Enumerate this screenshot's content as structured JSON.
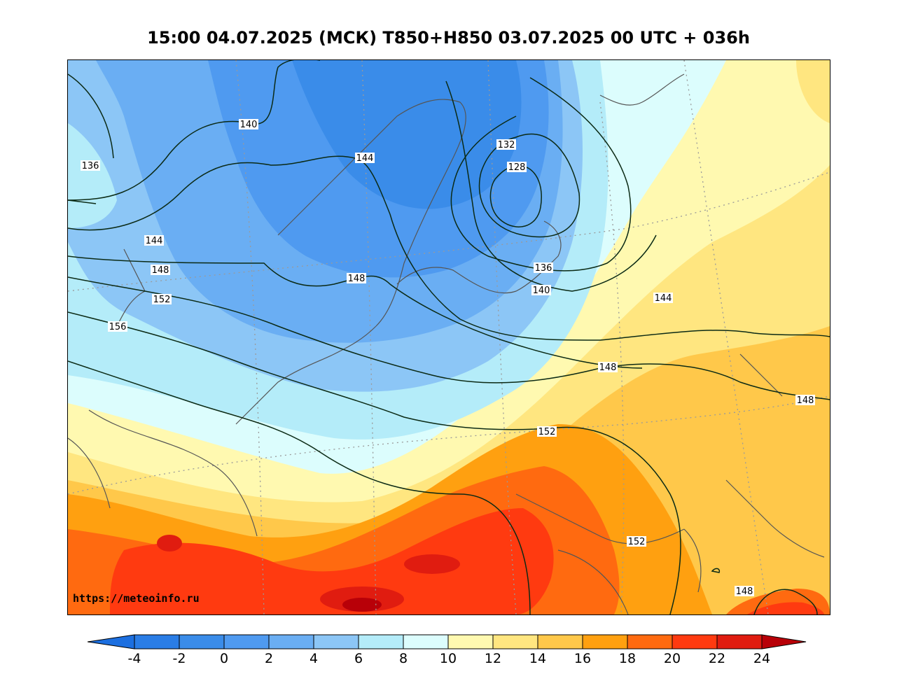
{
  "title": "15:00 04.07.2025 (МСК) T850+H850 03.07.2025 00 UTC + 036h",
  "source_label": "https://meteoinfo.ru",
  "colorbar": {
    "ticks": [
      "-4",
      "-2",
      "0",
      "2",
      "4",
      "6",
      "8",
      "10",
      "12",
      "14",
      "16",
      "18",
      "20",
      "22",
      "24"
    ],
    "colors": [
      "#2a7de6",
      "#3a8ce9",
      "#4f9af0",
      "#6aaef3",
      "#8cc6f6",
      "#b4ecf9",
      "#dcfdfd",
      "#fff9b0",
      "#ffe680",
      "#ffc84a",
      "#ffa010",
      "#ff6a10",
      "#ff3a10",
      "#e01c10"
    ],
    "low_extend_color": "#1c6fe0",
    "high_extend_color": "#b80008"
  },
  "contour_labels": [
    {
      "id": "lbl-140-a",
      "text": "140"
    },
    {
      "id": "lbl-136-a",
      "text": "136"
    },
    {
      "id": "lbl-144-a",
      "text": "144"
    },
    {
      "id": "lbl-132",
      "text": "132"
    },
    {
      "id": "lbl-128",
      "text": "128"
    },
    {
      "id": "lbl-144-b",
      "text": "144"
    },
    {
      "id": "lbl-148-a",
      "text": "148"
    },
    {
      "id": "lbl-148-b",
      "text": "148"
    },
    {
      "id": "lbl-136-b",
      "text": "136"
    },
    {
      "id": "lbl-140-b",
      "text": "140"
    },
    {
      "id": "lbl-152-a",
      "text": "152"
    },
    {
      "id": "lbl-144-c",
      "text": "144"
    },
    {
      "id": "lbl-156",
      "text": "156"
    },
    {
      "id": "lbl-148-c",
      "text": "148"
    },
    {
      "id": "lbl-148-d",
      "text": "148"
    },
    {
      "id": "lbl-152-b",
      "text": "152"
    },
    {
      "id": "lbl-152-c",
      "text": "152"
    },
    {
      "id": "lbl-148-e",
      "text": "148"
    }
  ]
}
